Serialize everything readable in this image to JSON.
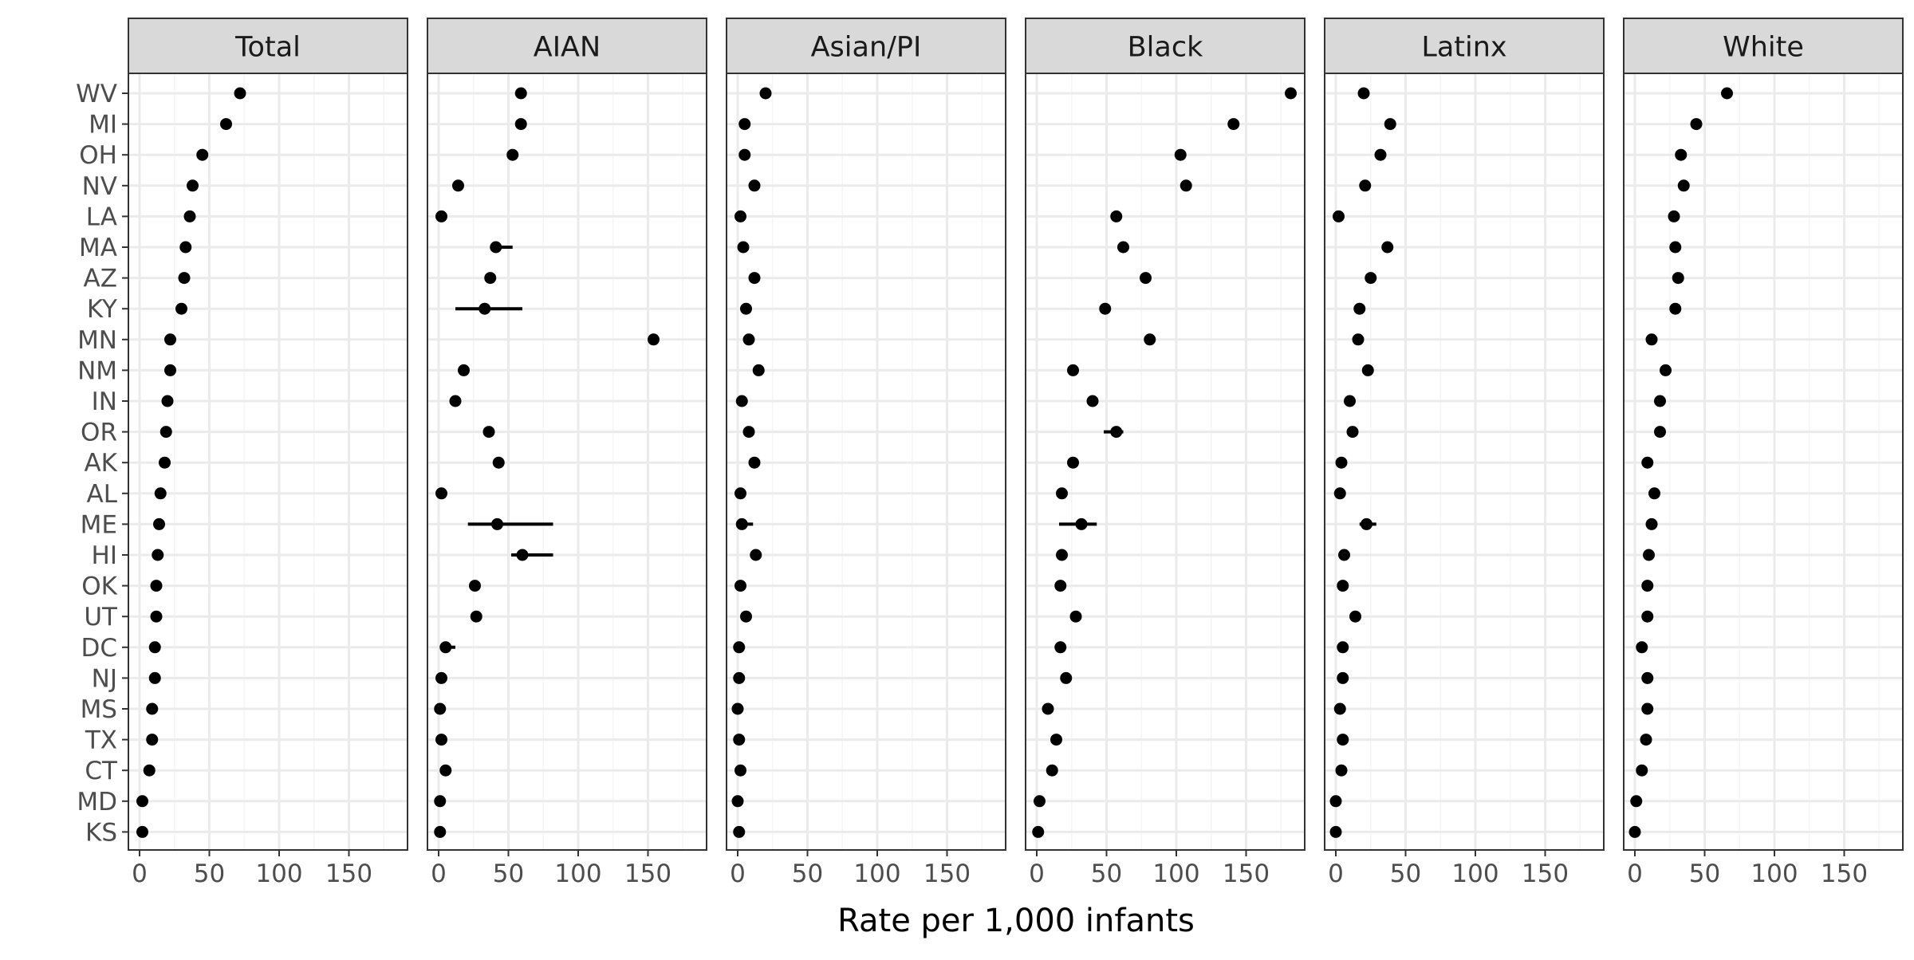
{
  "chart_data": {
    "type": "scatter",
    "facets": [
      "Total",
      "AIAN",
      "Asian/PI",
      "Black",
      "Latinx",
      "White"
    ],
    "states": [
      "WV",
      "MI",
      "OH",
      "NV",
      "LA",
      "MA",
      "AZ",
      "KY",
      "MN",
      "NM",
      "IN",
      "OR",
      "AK",
      "AL",
      "ME",
      "HI",
      "OK",
      "UT",
      "DC",
      "NJ",
      "MS",
      "TX",
      "CT",
      "MD",
      "KS"
    ],
    "xlabel": "Rate per 1,000 infants",
    "ylabel": "",
    "xlim": [
      -8,
      192
    ],
    "xticks": [
      0,
      50,
      100,
      150
    ],
    "xtick_labels": [
      "0",
      "50",
      "100",
      "150"
    ],
    "grid": true,
    "series": [
      {
        "name": "Total",
        "values": [
          72,
          62,
          45,
          38,
          36,
          33,
          32,
          30,
          22,
          22,
          20,
          19,
          18,
          15,
          14,
          13,
          12,
          12,
          11,
          11,
          9,
          9,
          7,
          2,
          2
        ],
        "err_low": [
          null,
          null,
          null,
          null,
          null,
          null,
          null,
          null,
          null,
          null,
          null,
          null,
          null,
          null,
          null,
          null,
          null,
          null,
          null,
          null,
          null,
          null,
          null,
          null,
          null
        ],
        "err_high": [
          null,
          null,
          null,
          null,
          null,
          null,
          null,
          null,
          null,
          null,
          null,
          null,
          null,
          null,
          null,
          null,
          null,
          null,
          null,
          null,
          null,
          null,
          null,
          null,
          null
        ]
      },
      {
        "name": "AIAN",
        "values": [
          59,
          59,
          53,
          14,
          2,
          41,
          37,
          33,
          154,
          18,
          12,
          36,
          43,
          2,
          42,
          60,
          26,
          27,
          5,
          2,
          1,
          2,
          5,
          1,
          1
        ],
        "err_low": [
          null,
          null,
          null,
          null,
          null,
          38,
          null,
          12,
          null,
          null,
          null,
          null,
          null,
          null,
          21,
          52,
          null,
          null,
          2,
          null,
          null,
          null,
          null,
          null,
          null
        ],
        "err_high": [
          null,
          null,
          null,
          null,
          null,
          53,
          null,
          60,
          null,
          null,
          null,
          null,
          null,
          null,
          82,
          82,
          null,
          null,
          12,
          null,
          null,
          null,
          null,
          null,
          null
        ]
      },
      {
        "name": "Asian/PI",
        "values": [
          20,
          5,
          5,
          12,
          2,
          4,
          12,
          6,
          8,
          15,
          3,
          8,
          12,
          2,
          3,
          13,
          2,
          6,
          1,
          1,
          0,
          1,
          2,
          0,
          1
        ],
        "err_low": [
          null,
          null,
          null,
          null,
          null,
          null,
          null,
          null,
          null,
          null,
          null,
          null,
          null,
          null,
          1,
          null,
          null,
          null,
          null,
          null,
          null,
          null,
          null,
          null,
          null
        ],
        "err_high": [
          null,
          null,
          null,
          null,
          null,
          null,
          null,
          null,
          null,
          null,
          null,
          null,
          null,
          null,
          11,
          null,
          null,
          null,
          null,
          null,
          null,
          null,
          null,
          null,
          null
        ]
      },
      {
        "name": "Black",
        "values": [
          182,
          141,
          103,
          107,
          57,
          62,
          78,
          49,
          81,
          26,
          40,
          57,
          26,
          18,
          32,
          18,
          17,
          28,
          17,
          21,
          8,
          14,
          11,
          2,
          1
        ],
        "err_low": [
          null,
          null,
          null,
          null,
          null,
          null,
          null,
          null,
          null,
          null,
          null,
          48,
          null,
          null,
          16,
          null,
          null,
          null,
          null,
          null,
          null,
          null,
          null,
          null,
          null
        ],
        "err_high": [
          null,
          null,
          null,
          null,
          null,
          null,
          null,
          null,
          null,
          null,
          null,
          62,
          null,
          null,
          43,
          null,
          null,
          null,
          null,
          null,
          null,
          null,
          null,
          null,
          null
        ]
      },
      {
        "name": "Latinx",
        "values": [
          20,
          39,
          32,
          21,
          2,
          37,
          25,
          17,
          16,
          23,
          10,
          12,
          4,
          3,
          22,
          6,
          5,
          14,
          5,
          5,
          3,
          5,
          4,
          0,
          0
        ],
        "err_low": [
          null,
          null,
          null,
          null,
          null,
          null,
          null,
          null,
          null,
          null,
          null,
          null,
          null,
          null,
          17,
          null,
          null,
          null,
          null,
          null,
          null,
          null,
          null,
          null,
          null
        ],
        "err_high": [
          null,
          null,
          null,
          null,
          null,
          null,
          null,
          null,
          null,
          null,
          null,
          null,
          null,
          null,
          29,
          null,
          null,
          null,
          null,
          null,
          null,
          null,
          null,
          null,
          null
        ]
      },
      {
        "name": "White",
        "values": [
          66,
          44,
          33,
          35,
          28,
          29,
          31,
          29,
          12,
          22,
          18,
          18,
          9,
          14,
          12,
          10,
          9,
          9,
          5,
          9,
          9,
          8,
          5,
          1,
          0
        ],
        "err_low": [
          null,
          null,
          null,
          null,
          null,
          null,
          null,
          null,
          null,
          null,
          null,
          null,
          null,
          null,
          null,
          null,
          null,
          null,
          null,
          null,
          null,
          null,
          null,
          null,
          null
        ],
        "err_high": [
          null,
          null,
          null,
          null,
          null,
          null,
          null,
          null,
          null,
          null,
          null,
          null,
          null,
          null,
          null,
          null,
          null,
          null,
          null,
          null,
          null,
          null,
          null,
          null,
          null
        ]
      }
    ],
    "colors": {
      "strip_fill": "#d9d9d9",
      "panel_border": "#333333",
      "grid_major": "#ebebeb",
      "grid_minor": "#f5f5f5",
      "point": "#000000",
      "tick_text": "#4d4d4d",
      "strip_text": "#1a1a1a",
      "axis_title": "#000000"
    }
  }
}
